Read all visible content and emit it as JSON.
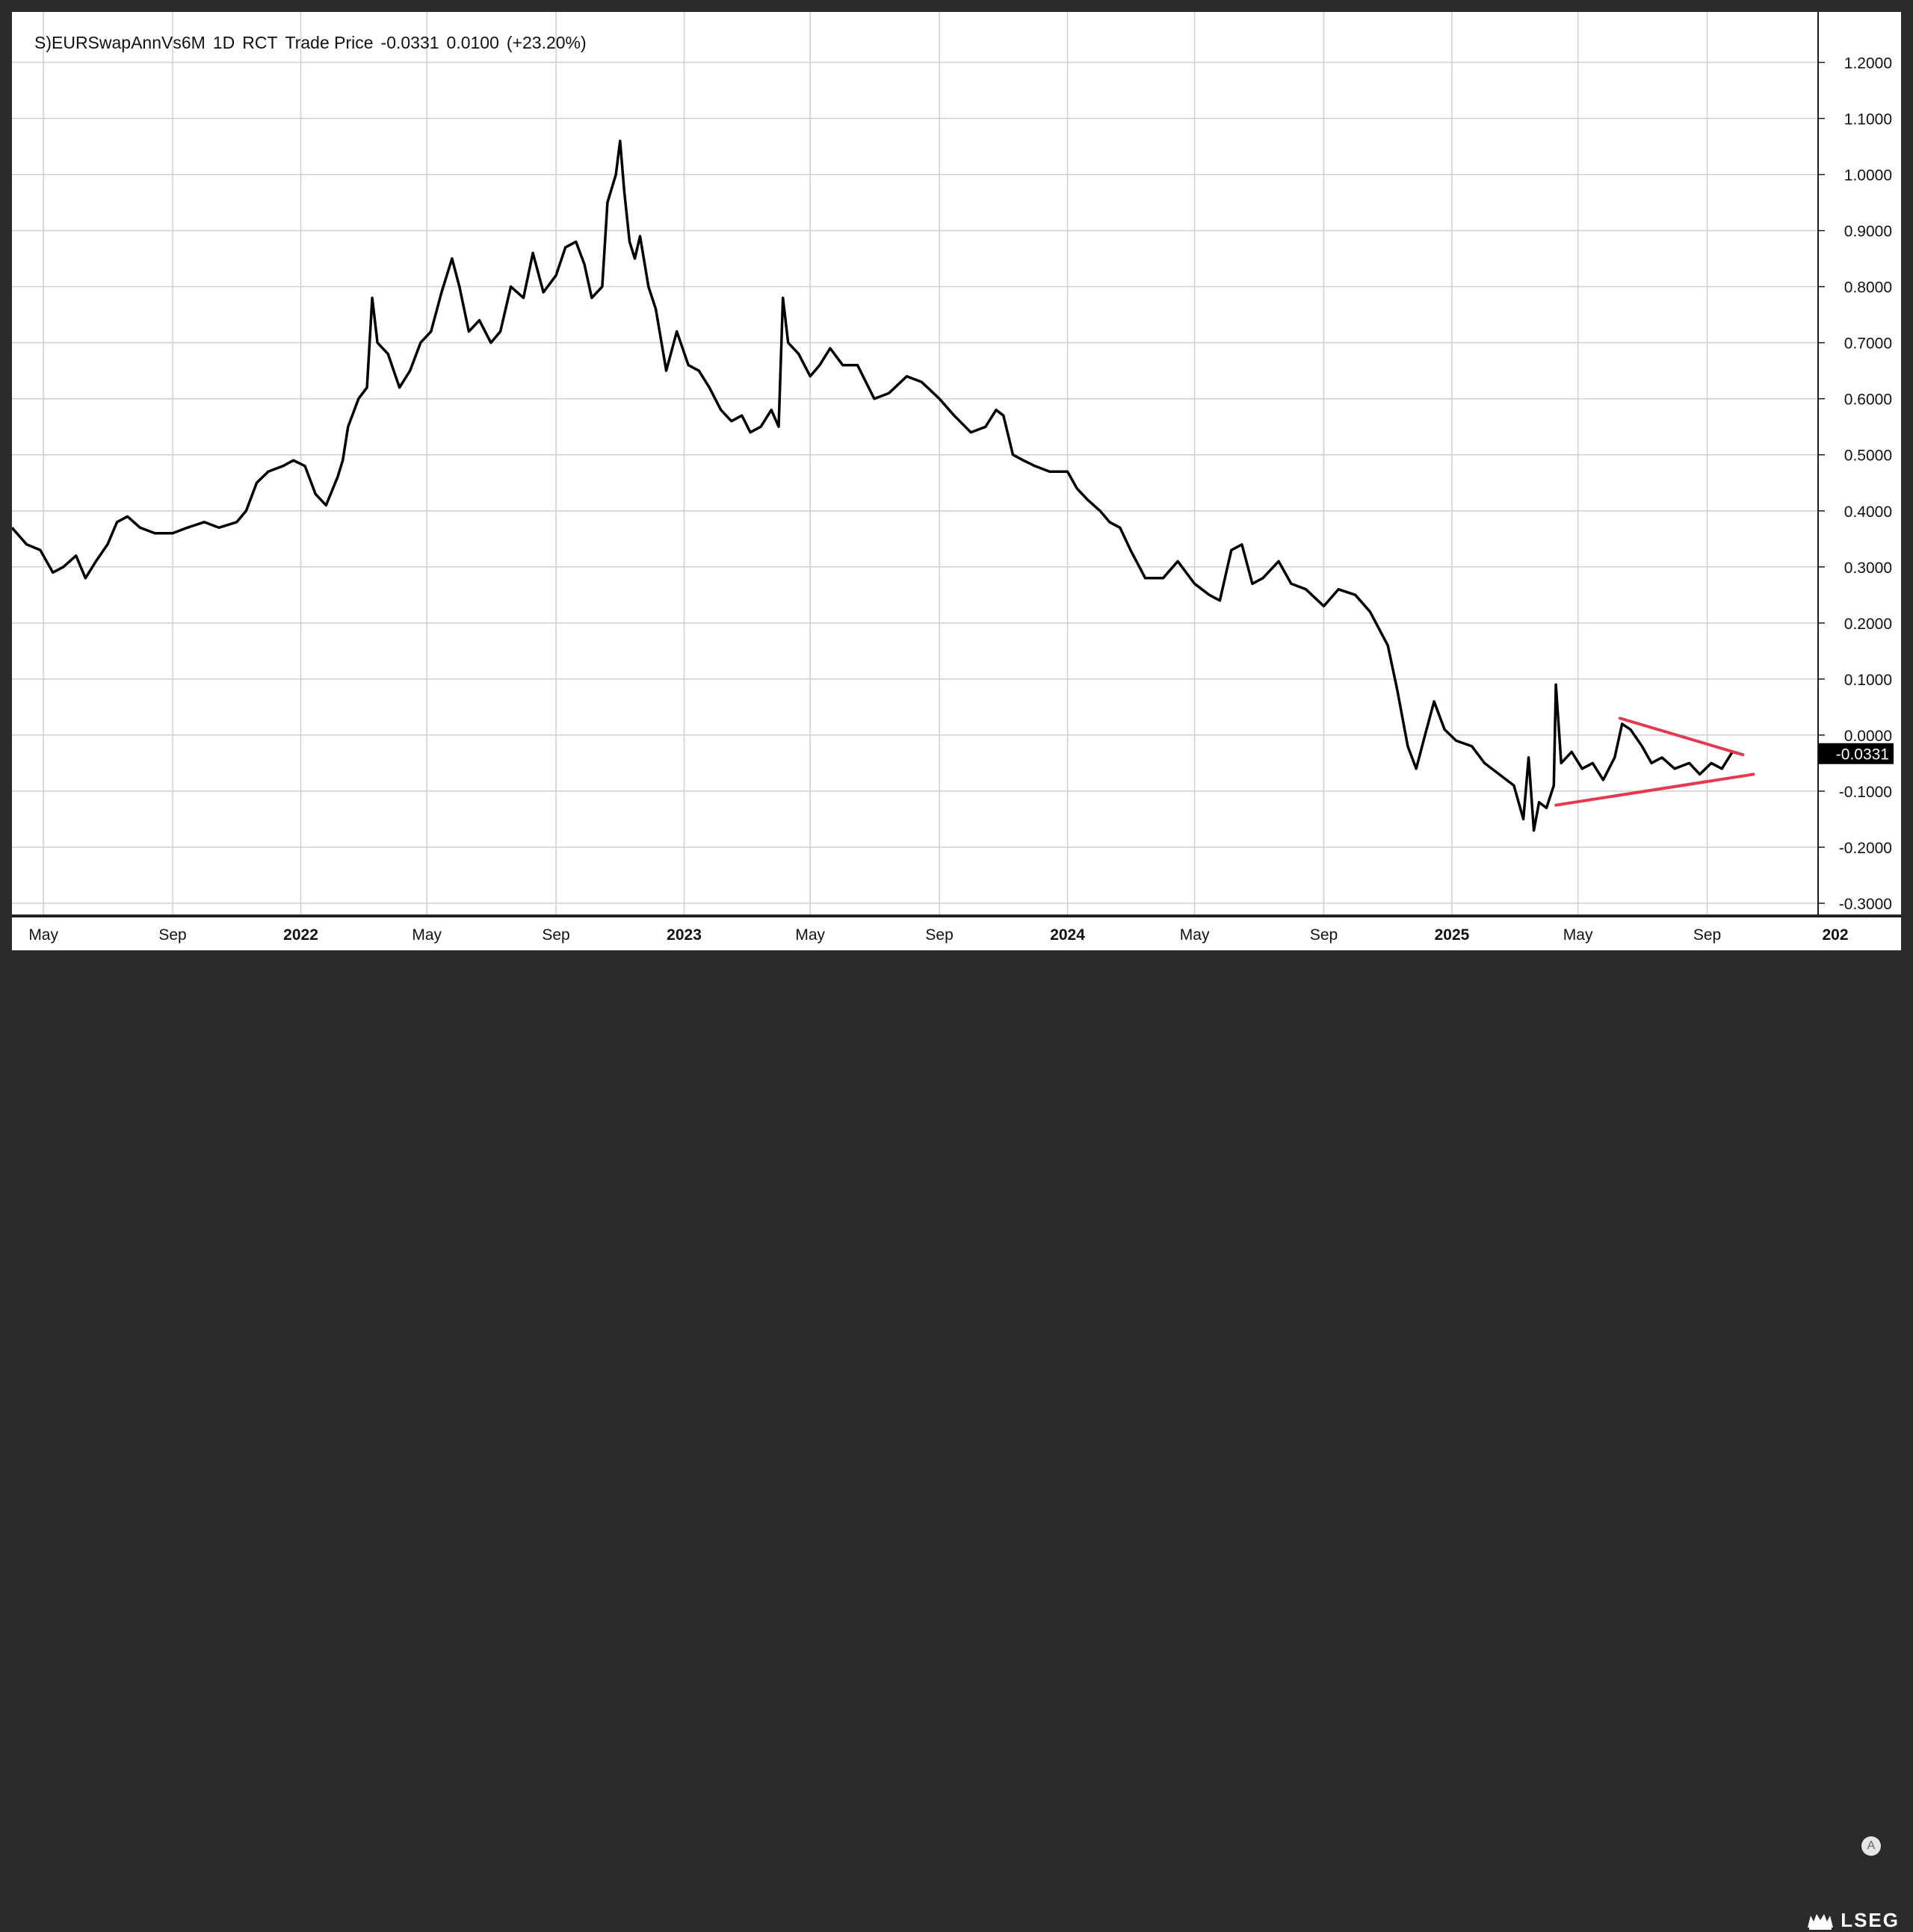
{
  "legend": {
    "symbol": "S)EURSwapAnnVs6M",
    "interval": "1D",
    "source": "RCT",
    "field": "Trade Price",
    "last": "-0.0331",
    "change": "0.0100",
    "change_pct": "(+23.20%)"
  },
  "price_tag": "-0.0331",
  "auto_scale_label": "A",
  "logo_text": "LSEG",
  "colors": {
    "line": "#000000",
    "trendline": "#e8384f",
    "grid": "#cfcfcf",
    "price_tag_bg": "#000000"
  },
  "chart_data": {
    "type": "line",
    "title": "",
    "xlabel": "",
    "ylabel": "",
    "ylim": [
      -0.32,
      1.29
    ],
    "grid": true,
    "x_ticks": [
      {
        "label": "May",
        "date": "2021-05-01"
      },
      {
        "label": "Sep",
        "date": "2021-09-01"
      },
      {
        "label": "2022",
        "date": "2022-01-01"
      },
      {
        "label": "May",
        "date": "2022-05-01"
      },
      {
        "label": "Sep",
        "date": "2022-09-01"
      },
      {
        "label": "2023",
        "date": "2023-01-01"
      },
      {
        "label": "May",
        "date": "2023-05-01"
      },
      {
        "label": "Sep",
        "date": "2023-09-01"
      },
      {
        "label": "2024",
        "date": "2024-01-01"
      },
      {
        "label": "May",
        "date": "2024-05-01"
      },
      {
        "label": "Sep",
        "date": "2024-09-01"
      },
      {
        "label": "2025",
        "date": "2025-01-01"
      },
      {
        "label": "May",
        "date": "2025-05-01"
      },
      {
        "label": "Sep",
        "date": "2025-09-01"
      },
      {
        "label": "202",
        "date": "2026-01-01"
      }
    ],
    "y_ticks": [
      "1.2000",
      "1.1000",
      "1.0000",
      "0.9000",
      "0.8000",
      "0.7000",
      "0.6000",
      "0.5000",
      "0.4000",
      "0.3000",
      "0.2000",
      "0.1000",
      "0.0000",
      "-0.1000",
      "-0.2000",
      "-0.3000"
    ],
    "series": [
      {
        "points": [
          [
            "2021-04-01",
            0.37
          ],
          [
            "2021-04-15",
            0.34
          ],
          [
            "2021-04-28",
            0.33
          ],
          [
            "2021-05-10",
            0.29
          ],
          [
            "2021-05-20",
            0.3
          ],
          [
            "2021-06-01",
            0.32
          ],
          [
            "2021-06-10",
            0.28
          ],
          [
            "2021-06-20",
            0.31
          ],
          [
            "2021-07-01",
            0.34
          ],
          [
            "2021-07-10",
            0.38
          ],
          [
            "2021-07-20",
            0.39
          ],
          [
            "2021-08-01",
            0.37
          ],
          [
            "2021-08-15",
            0.36
          ],
          [
            "2021-09-01",
            0.36
          ],
          [
            "2021-09-15",
            0.37
          ],
          [
            "2021-10-01",
            0.38
          ],
          [
            "2021-10-15",
            0.37
          ],
          [
            "2021-11-01",
            0.38
          ],
          [
            "2021-11-10",
            0.4
          ],
          [
            "2021-11-20",
            0.45
          ],
          [
            "2021-12-01",
            0.47
          ],
          [
            "2021-12-15",
            0.48
          ],
          [
            "2021-12-25",
            0.49
          ],
          [
            "2022-01-05",
            0.48
          ],
          [
            "2022-01-15",
            0.43
          ],
          [
            "2022-01-25",
            0.41
          ],
          [
            "2022-02-05",
            0.46
          ],
          [
            "2022-02-10",
            0.49
          ],
          [
            "2022-02-15",
            0.55
          ],
          [
            "2022-02-25",
            0.6
          ],
          [
            "2022-03-05",
            0.62
          ],
          [
            "2022-03-10",
            0.78
          ],
          [
            "2022-03-15",
            0.7
          ],
          [
            "2022-03-25",
            0.68
          ],
          [
            "2022-04-05",
            0.62
          ],
          [
            "2022-04-15",
            0.65
          ],
          [
            "2022-04-25",
            0.7
          ],
          [
            "2022-05-05",
            0.72
          ],
          [
            "2022-05-15",
            0.79
          ],
          [
            "2022-05-25",
            0.85
          ],
          [
            "2022-06-01",
            0.8
          ],
          [
            "2022-06-10",
            0.72
          ],
          [
            "2022-06-20",
            0.74
          ],
          [
            "2022-07-01",
            0.7
          ],
          [
            "2022-07-10",
            0.72
          ],
          [
            "2022-07-20",
            0.8
          ],
          [
            "2022-08-01",
            0.78
          ],
          [
            "2022-08-10",
            0.86
          ],
          [
            "2022-08-20",
            0.79
          ],
          [
            "2022-09-01",
            0.82
          ],
          [
            "2022-09-10",
            0.87
          ],
          [
            "2022-09-20",
            0.88
          ],
          [
            "2022-09-28",
            0.84
          ],
          [
            "2022-10-05",
            0.78
          ],
          [
            "2022-10-15",
            0.8
          ],
          [
            "2022-10-20",
            0.95
          ],
          [
            "2022-10-28",
            1.0
          ],
          [
            "2022-11-01",
            1.06
          ],
          [
            "2022-11-05",
            0.97
          ],
          [
            "2022-11-10",
            0.88
          ],
          [
            "2022-11-15",
            0.85
          ],
          [
            "2022-11-20",
            0.89
          ],
          [
            "2022-11-28",
            0.8
          ],
          [
            "2022-12-05",
            0.76
          ],
          [
            "2022-12-15",
            0.65
          ],
          [
            "2022-12-25",
            0.72
          ],
          [
            "2023-01-05",
            0.66
          ],
          [
            "2023-01-15",
            0.65
          ],
          [
            "2023-01-25",
            0.62
          ],
          [
            "2023-02-05",
            0.58
          ],
          [
            "2023-02-15",
            0.56
          ],
          [
            "2023-02-25",
            0.57
          ],
          [
            "2023-03-05",
            0.54
          ],
          [
            "2023-03-15",
            0.55
          ],
          [
            "2023-03-25",
            0.58
          ],
          [
            "2023-04-01",
            0.55
          ],
          [
            "2023-04-05",
            0.78
          ],
          [
            "2023-04-10",
            0.7
          ],
          [
            "2023-04-20",
            0.68
          ],
          [
            "2023-05-01",
            0.64
          ],
          [
            "2023-05-10",
            0.66
          ],
          [
            "2023-05-20",
            0.69
          ],
          [
            "2023-06-01",
            0.66
          ],
          [
            "2023-06-15",
            0.66
          ],
          [
            "2023-07-01",
            0.6
          ],
          [
            "2023-07-15",
            0.61
          ],
          [
            "2023-08-01",
            0.64
          ],
          [
            "2023-08-15",
            0.63
          ],
          [
            "2023-09-01",
            0.6
          ],
          [
            "2023-09-15",
            0.57
          ],
          [
            "2023-10-01",
            0.54
          ],
          [
            "2023-10-15",
            0.55
          ],
          [
            "2023-10-25",
            0.58
          ],
          [
            "2023-11-01",
            0.57
          ],
          [
            "2023-11-10",
            0.5
          ],
          [
            "2023-11-20",
            0.49
          ],
          [
            "2023-12-01",
            0.48
          ],
          [
            "2023-12-15",
            0.47
          ],
          [
            "2024-01-01",
            0.47
          ],
          [
            "2024-01-10",
            0.44
          ],
          [
            "2024-01-20",
            0.42
          ],
          [
            "2024-02-01",
            0.4
          ],
          [
            "2024-02-10",
            0.38
          ],
          [
            "2024-02-20",
            0.37
          ],
          [
            "2024-03-01",
            0.33
          ],
          [
            "2024-03-15",
            0.28
          ],
          [
            "2024-04-01",
            0.28
          ],
          [
            "2024-04-15",
            0.31
          ],
          [
            "2024-05-01",
            0.27
          ],
          [
            "2024-05-15",
            0.25
          ],
          [
            "2024-05-25",
            0.24
          ],
          [
            "2024-06-05",
            0.33
          ],
          [
            "2024-06-15",
            0.34
          ],
          [
            "2024-06-25",
            0.27
          ],
          [
            "2024-07-05",
            0.28
          ],
          [
            "2024-07-20",
            0.31
          ],
          [
            "2024-08-01",
            0.27
          ],
          [
            "2024-08-15",
            0.26
          ],
          [
            "2024-09-01",
            0.23
          ],
          [
            "2024-09-15",
            0.26
          ],
          [
            "2024-10-01",
            0.25
          ],
          [
            "2024-10-15",
            0.22
          ],
          [
            "2024-11-01",
            0.16
          ],
          [
            "2024-11-10",
            0.08
          ],
          [
            "2024-11-20",
            -0.02
          ],
          [
            "2024-11-28",
            -0.06
          ],
          [
            "2024-12-05",
            -0.01
          ],
          [
            "2024-12-15",
            0.06
          ],
          [
            "2024-12-25",
            0.01
          ],
          [
            "2025-01-05",
            -0.01
          ],
          [
            "2025-01-20",
            -0.02
          ],
          [
            "2025-02-01",
            -0.05
          ],
          [
            "2025-02-15",
            -0.07
          ],
          [
            "2025-03-01",
            -0.09
          ],
          [
            "2025-03-10",
            -0.15
          ],
          [
            "2025-03-15",
            -0.04
          ],
          [
            "2025-03-20",
            -0.17
          ],
          [
            "2025-03-25",
            -0.12
          ],
          [
            "2025-04-01",
            -0.13
          ],
          [
            "2025-04-08",
            -0.09
          ],
          [
            "2025-04-10",
            0.09
          ],
          [
            "2025-04-15",
            -0.05
          ],
          [
            "2025-04-25",
            -0.03
          ],
          [
            "2025-05-05",
            -0.06
          ],
          [
            "2025-05-15",
            -0.05
          ],
          [
            "2025-05-25",
            -0.08
          ],
          [
            "2025-06-05",
            -0.04
          ],
          [
            "2025-06-12",
            0.02
          ],
          [
            "2025-06-20",
            0.01
          ],
          [
            "2025-07-01",
            -0.02
          ],
          [
            "2025-07-10",
            -0.05
          ],
          [
            "2025-07-20",
            -0.04
          ],
          [
            "2025-08-01",
            -0.06
          ],
          [
            "2025-08-15",
            -0.05
          ],
          [
            "2025-08-25",
            -0.07
          ],
          [
            "2025-09-05",
            -0.05
          ],
          [
            "2025-09-15",
            -0.06
          ],
          [
            "2025-09-25",
            -0.03
          ],
          [
            "2025-10-01",
            -0.0331
          ]
        ]
      }
    ],
    "trendlines": [
      {
        "from": [
          "2025-06-10",
          0.03
        ],
        "to": [
          "2025-10-05",
          -0.035
        ]
      },
      {
        "from": [
          "2025-04-10",
          -0.125
        ],
        "to": [
          "2025-10-15",
          -0.07
        ]
      }
    ]
  }
}
